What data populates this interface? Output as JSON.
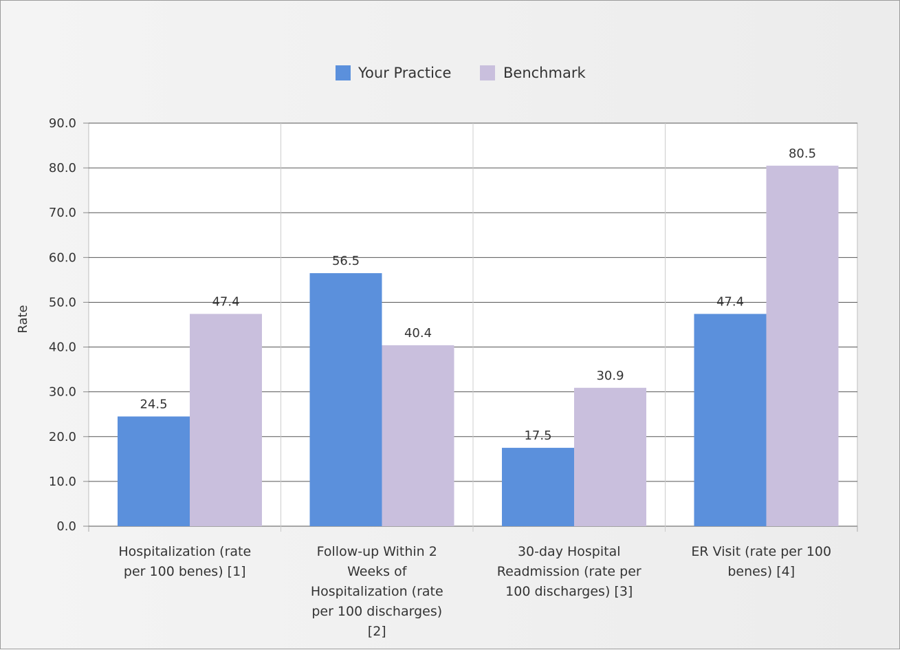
{
  "chart_data": {
    "type": "bar",
    "title": "",
    "xlabel": "",
    "ylabel": "Rate",
    "ylim": [
      0,
      90
    ],
    "yticks": [
      "0.0",
      "10.0",
      "20.0",
      "30.0",
      "40.0",
      "50.0",
      "60.0",
      "70.0",
      "80.0",
      "90.0"
    ],
    "grid": true,
    "legend_position": "top-center",
    "categories": [
      [
        "Hospitalization (rate",
        "per 100 benes) [1]"
      ],
      [
        "Follow-up Within 2",
        "Weeks of",
        "Hospitalization (rate",
        "per 100 discharges)",
        "[2]"
      ],
      [
        "30-day Hospital",
        "Readmission (rate per",
        "100 discharges) [3]"
      ],
      [
        "ER Visit (rate per 100",
        "benes) [4]"
      ]
    ],
    "series": [
      {
        "name": "Your Practice",
        "color": "#5b90dc",
        "values": [
          24.5,
          56.5,
          17.5,
          47.4
        ],
        "labels": [
          "24.5",
          "56.5",
          "17.5",
          "47.4"
        ]
      },
      {
        "name": "Benchmark",
        "color": "#c9bfdd",
        "values": [
          47.4,
          40.4,
          30.9,
          80.5
        ],
        "labels": [
          "47.4",
          "40.4",
          "30.9",
          "80.5"
        ]
      }
    ]
  }
}
